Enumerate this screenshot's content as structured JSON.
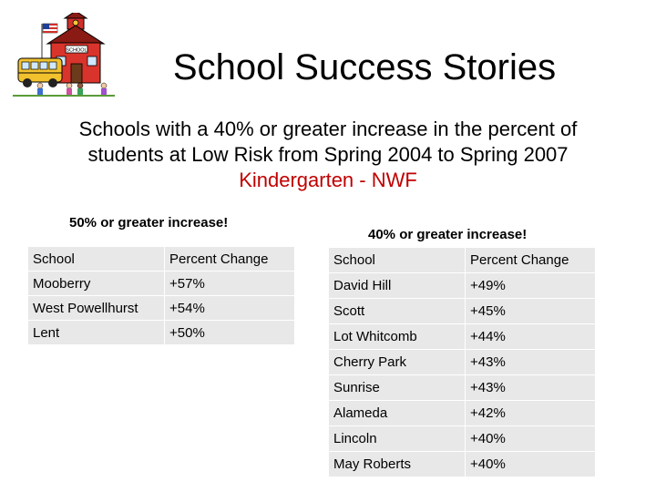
{
  "slide": {
    "title": "School Success Stories",
    "subtitle_lines": [
      "Schools with a 40% or greater increase in the percent of",
      "students at Low Risk from Spring 2004 to Spring 2007"
    ],
    "subtitle_highlight": "Kindergarten - NWF",
    "highlight_color": "#c00000"
  },
  "clipart": {
    "icon": "schoolhouse-with-bus-icon",
    "sign_text": "SCHOOL"
  },
  "table_50": {
    "heading": "50% or greater increase!",
    "headers": [
      "School",
      "Percent Change"
    ],
    "rows": [
      [
        "Mooberry",
        "+57%"
      ],
      [
        "West Powellhurst",
        "+54%"
      ],
      [
        "Lent",
        "+50%"
      ]
    ]
  },
  "table_40": {
    "heading": "40% or greater increase!",
    "headers": [
      "School",
      "Percent Change"
    ],
    "rows": [
      [
        "David Hill",
        "+49%"
      ],
      [
        "Scott",
        "+45%"
      ],
      [
        "Lot Whitcomb",
        "+44%"
      ],
      [
        "Cherry Park",
        "+43%"
      ],
      [
        "Sunrise",
        "+43%"
      ],
      [
        "Alameda",
        "+42%"
      ],
      [
        "Lincoln",
        "+40%"
      ],
      [
        "May Roberts",
        "+40%"
      ]
    ]
  }
}
